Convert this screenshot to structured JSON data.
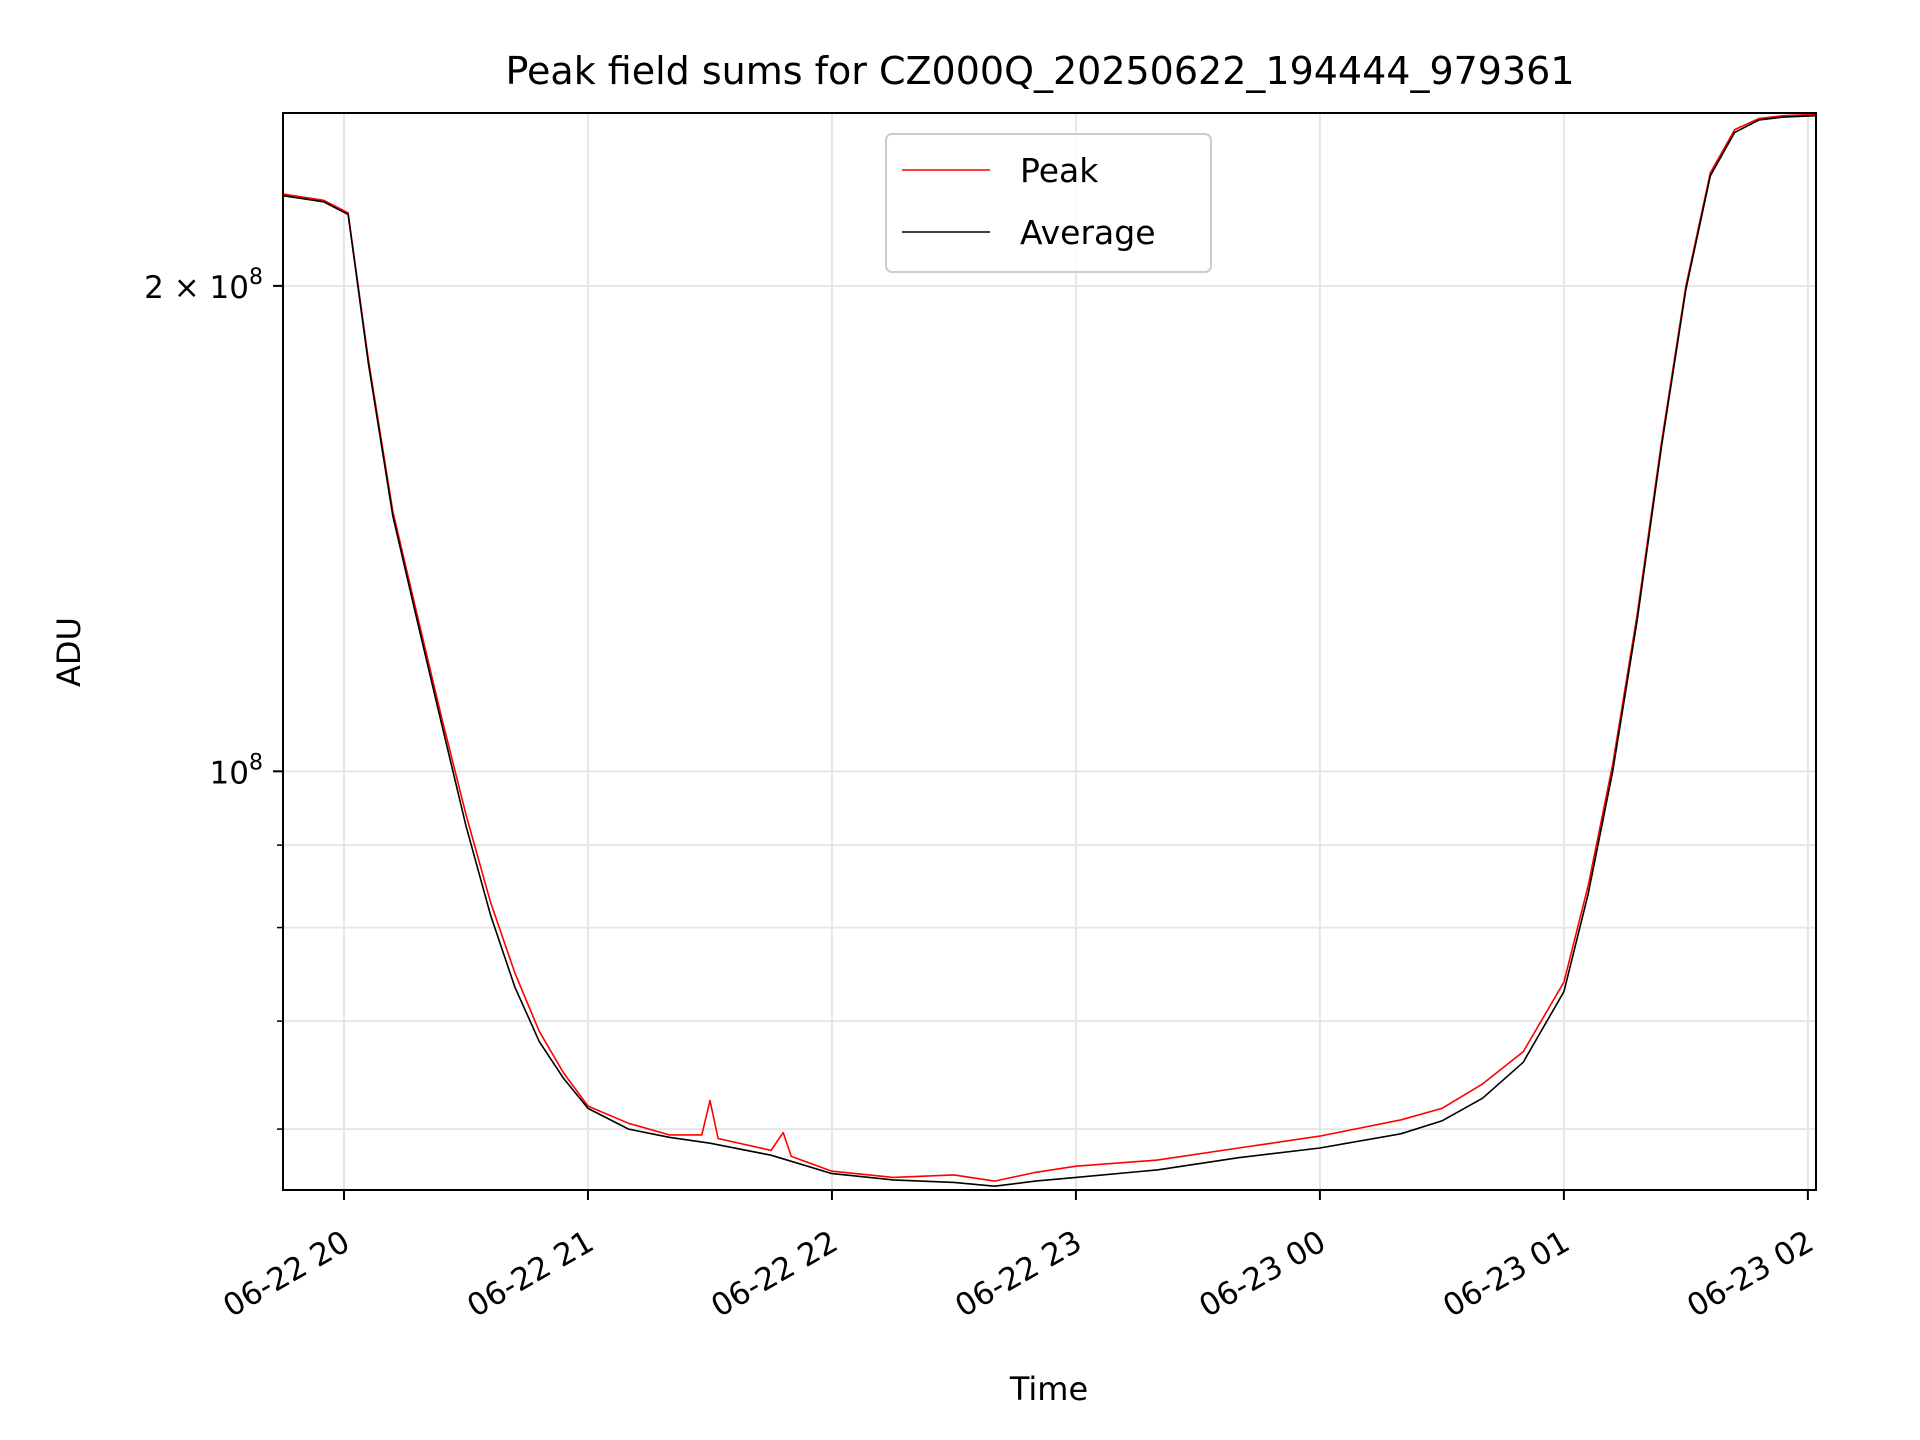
{
  "chart_data": {
    "type": "line",
    "title": "Peak field sums for CZ000Q_20250622_194444_979361",
    "xlabel": "Time",
    "ylabel": "ADU",
    "y_scale": "log",
    "grid": true,
    "legend_position": "upper center",
    "xlim": [
      "2025-06-22 19:45",
      "2025-06-23 02:02"
    ],
    "ylim": [
      55000000,
      256000000
    ],
    "x_ticks": [
      {
        "value": "2025-06-22 20:00",
        "label": "06-22 20"
      },
      {
        "value": "2025-06-22 21:00",
        "label": "06-22 21"
      },
      {
        "value": "2025-06-22 22:00",
        "label": "06-22 22"
      },
      {
        "value": "2025-06-22 23:00",
        "label": "06-22 23"
      },
      {
        "value": "2025-06-23 00:00",
        "label": "06-23 00"
      },
      {
        "value": "2025-06-23 01:00",
        "label": "06-23 01"
      },
      {
        "value": "2025-06-23 02:00",
        "label": "06-23 02"
      }
    ],
    "y_major_ticks": [
      {
        "value": 100000000,
        "base": "10",
        "exp": "8",
        "coef": ""
      },
      {
        "value": 200000000,
        "base": "10",
        "exp": "8",
        "coef": "2 × "
      }
    ],
    "y_minor_ticks": [
      60000000,
      70000000,
      80000000,
      90000000
    ],
    "series": [
      {
        "name": "Peak",
        "color": "#ff0000",
        "x": [
          "2025-06-22 19:45",
          "2025-06-22 19:55",
          "2025-06-22 20:01",
          "2025-06-22 20:06",
          "2025-06-22 20:12",
          "2025-06-22 20:18",
          "2025-06-22 20:24",
          "2025-06-22 20:30",
          "2025-06-22 20:36",
          "2025-06-22 20:42",
          "2025-06-22 20:48",
          "2025-06-22 20:54",
          "2025-06-22 21:00",
          "2025-06-22 21:10",
          "2025-06-22 21:20",
          "2025-06-22 21:28",
          "2025-06-22 21:30",
          "2025-06-22 21:32",
          "2025-06-22 21:45",
          "2025-06-22 21:48",
          "2025-06-22 21:50",
          "2025-06-22 22:00",
          "2025-06-22 22:15",
          "2025-06-22 22:30",
          "2025-06-22 22:40",
          "2025-06-22 22:50",
          "2025-06-22 23:00",
          "2025-06-22 23:20",
          "2025-06-22 23:40",
          "2025-06-23 00:00",
          "2025-06-23 00:20",
          "2025-06-23 00:30",
          "2025-06-23 00:40",
          "2025-06-23 00:50",
          "2025-06-23 01:00",
          "2025-06-23 01:06",
          "2025-06-23 01:12",
          "2025-06-23 01:18",
          "2025-06-23 01:24",
          "2025-06-23 01:30",
          "2025-06-23 01:36",
          "2025-06-23 01:42",
          "2025-06-23 01:48",
          "2025-06-23 01:54",
          "2025-06-23 02:02"
        ],
        "y": [
          228000000,
          226000000,
          222000000,
          180000000,
          145000000,
          125000000,
          108000000,
          94000000,
          83000000,
          75000000,
          69000000,
          65000000,
          62000000,
          60500000,
          59500000,
          59500000,
          62500000,
          59200000,
          58200000,
          59700000,
          57700000,
          56500000,
          56000000,
          56200000,
          55700000,
          56400000,
          56900000,
          57400000,
          58400000,
          59400000,
          60800000,
          61800000,
          64000000,
          67000000,
          74000000,
          85000000,
          101000000,
          125000000,
          160000000,
          200000000,
          235000000,
          250000000,
          254000000,
          255000000,
          255500000
        ]
      },
      {
        "name": "Average",
        "color": "#000000",
        "x": [
          "2025-06-22 19:45",
          "2025-06-22 19:55",
          "2025-06-22 20:01",
          "2025-06-22 20:06",
          "2025-06-22 20:12",
          "2025-06-22 20:18",
          "2025-06-22 20:24",
          "2025-06-22 20:30",
          "2025-06-22 20:36",
          "2025-06-22 20:42",
          "2025-06-22 20:48",
          "2025-06-22 20:54",
          "2025-06-22 21:00",
          "2025-06-22 21:10",
          "2025-06-22 21:20",
          "2025-06-22 21:30",
          "2025-06-22 21:45",
          "2025-06-22 22:00",
          "2025-06-22 22:15",
          "2025-06-22 22:30",
          "2025-06-22 22:40",
          "2025-06-22 22:50",
          "2025-06-22 23:00",
          "2025-06-22 23:20",
          "2025-06-22 23:40",
          "2025-06-23 00:00",
          "2025-06-23 00:20",
          "2025-06-23 00:30",
          "2025-06-23 00:40",
          "2025-06-23 00:50",
          "2025-06-23 01:00",
          "2025-06-23 01:06",
          "2025-06-23 01:12",
          "2025-06-23 01:18",
          "2025-06-23 01:24",
          "2025-06-23 01:30",
          "2025-06-23 01:36",
          "2025-06-23 01:42",
          "2025-06-23 01:48",
          "2025-06-23 01:54",
          "2025-06-23 02:02"
        ],
        "y": [
          227500000,
          225500000,
          221500000,
          179000000,
          144000000,
          124000000,
          107000000,
          92500000,
          81500000,
          73500000,
          68000000,
          64500000,
          61800000,
          60000000,
          59300000,
          58800000,
          57800000,
          56300000,
          55800000,
          55600000,
          55300000,
          55700000,
          56000000,
          56600000,
          57600000,
          58400000,
          59600000,
          60700000,
          62700000,
          66000000,
          73000000,
          84000000,
          100000000,
          124000000,
          159000000,
          199000000,
          234000000,
          249000000,
          253500000,
          254500000,
          255000000
        ]
      }
    ]
  }
}
